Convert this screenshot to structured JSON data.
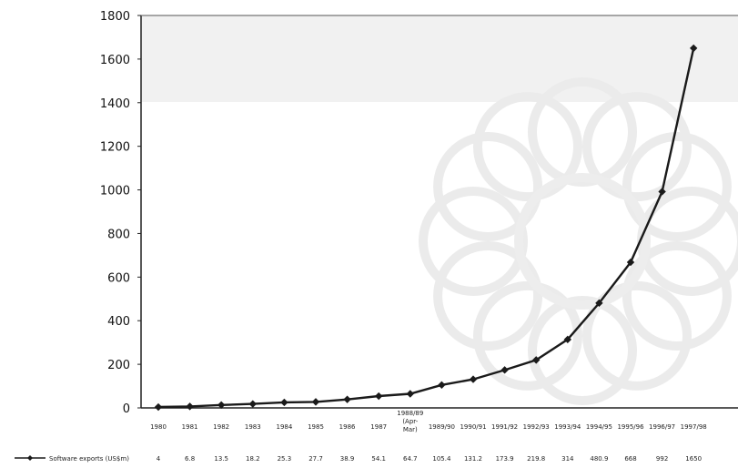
{
  "chart_data": {
    "type": "line",
    "categories": [
      "1980",
      "1981",
      "1982",
      "1983",
      "1984",
      "1985",
      "1986",
      "1987",
      "1988/89 (Apr-Mar)",
      "1989/90",
      "1990/91",
      "1991/92",
      "1992/93",
      "1993/94",
      "1994/95",
      "1995/96",
      "1996/97",
      "1997/98"
    ],
    "series": [
      {
        "name": "Software exports (US$m)",
        "values": [
          4,
          6.8,
          13.5,
          18.2,
          25.3,
          27.7,
          38.9,
          54.1,
          64.7,
          105.4,
          131.2,
          173.9,
          219.8,
          314,
          480.9,
          668,
          992,
          1650
        ],
        "labels": [
          "4",
          "6.8",
          "13.5",
          "18.2",
          "25.3",
          "27.7",
          "38.9",
          "54.1",
          "64.7",
          "105.4",
          "131.2",
          "173.9",
          "219.8",
          "314",
          "480.9",
          "668",
          "992",
          "1650"
        ]
      }
    ],
    "xlabel": "",
    "ylabel": "",
    "ylim": [
      0,
      1800
    ],
    "yticks": [
      0,
      200,
      400,
      600,
      800,
      1000,
      1200,
      1400,
      1600,
      1800
    ],
    "grid": false,
    "legend": "bottom-left",
    "colors": {
      "line": "#1a1a1a",
      "marker": "#1a1a1a",
      "axis": "#222222"
    }
  }
}
